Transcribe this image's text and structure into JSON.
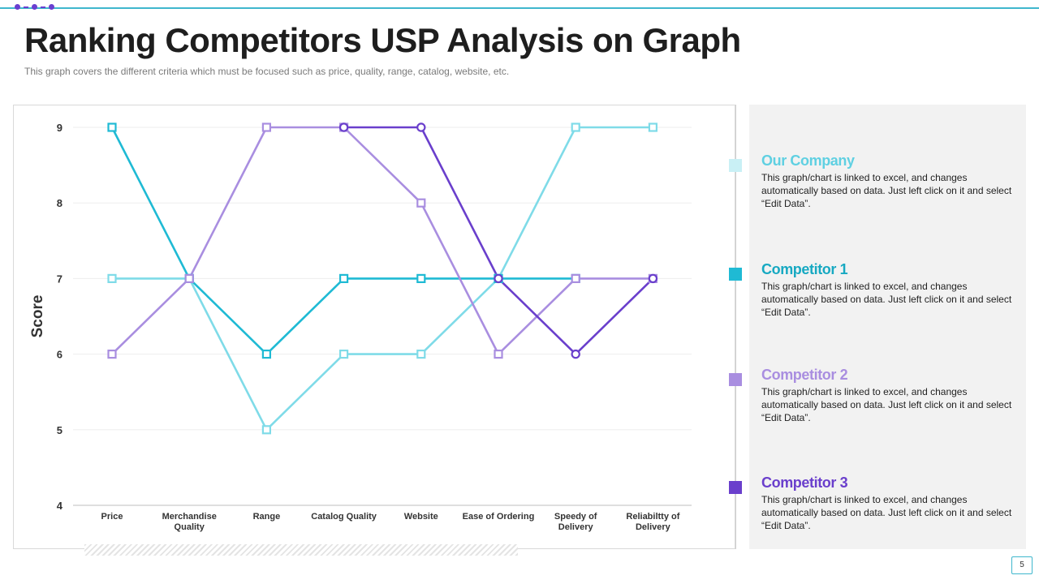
{
  "slide": {
    "title": "Ranking Competitors USP Analysis on Graph",
    "subtitle": "This graph covers the different  criteria which must be focused such as price, quality, range, catalog, website, etc.",
    "page_number": "5"
  },
  "chart_data": {
    "type": "line",
    "ylabel": "Score",
    "ylim": [
      4,
      9
    ],
    "yticks": [
      4,
      5,
      6,
      7,
      8,
      9
    ],
    "grid": true,
    "categories": [
      "Price",
      "Merchandise Quality",
      "Range",
      "Catalog Quality",
      "Website",
      "Ease of Ordering",
      "Speedy of Delivery",
      "Reliabiltty of Delivery"
    ],
    "category_lines": [
      [
        "Price"
      ],
      [
        "Merchandise",
        "Quality"
      ],
      [
        "Range"
      ],
      [
        "Catalog Quality"
      ],
      [
        "Website"
      ],
      [
        "Ease of Ordering"
      ],
      [
        "Speedy of",
        "Delivery"
      ],
      [
        "Reliabiltty of",
        "Delivery"
      ]
    ],
    "series": [
      {
        "name": "Our Company",
        "color": "#7fdbe8",
        "marker": "square",
        "values": [
          7,
          7,
          5,
          6,
          6,
          7,
          9,
          9
        ]
      },
      {
        "name": "Competitor 1",
        "color": "#1fbad4",
        "marker": "square",
        "values": [
          9,
          7,
          6,
          7,
          7,
          7,
          7,
          null
        ]
      },
      {
        "name": "Competitor 2",
        "color": "#a98ee0",
        "marker": "square",
        "values": [
          6,
          7,
          9,
          9,
          8,
          6,
          7,
          7
        ]
      },
      {
        "name": "Competitor 3",
        "color": "#6a3fcc",
        "marker": "circle",
        "values": [
          null,
          null,
          null,
          9,
          9,
          7,
          6,
          7
        ]
      }
    ],
    "legend_placement": "right"
  },
  "legend": [
    {
      "name": "Our Company",
      "swatch": "#c9f0f5",
      "text_color": "#5fd0e2",
      "desc": "This graph/chart is linked to excel, and changes automatically based on data. Just left click on it and select “Edit Data”."
    },
    {
      "name": "Competitor 1",
      "swatch": "#1fbad4",
      "text_color": "#17a9c2",
      "desc": "This graph/chart is linked to excel, and changes automatically based on data. Just left click on it and select “Edit Data”."
    },
    {
      "name": "Competitor 2",
      "swatch": "#a98ee0",
      "text_color": "#a98ee0",
      "desc": "This graph/chart is linked to excel, and changes automatically based on data. Just left click on it and select “Edit Data”."
    },
    {
      "name": "Competitor 3",
      "swatch": "#6a3fcc",
      "text_color": "#6a3fcc",
      "desc": "This graph/chart is linked to excel, and changes automatically based on data. Just left click on it and select “Edit Data”."
    }
  ]
}
